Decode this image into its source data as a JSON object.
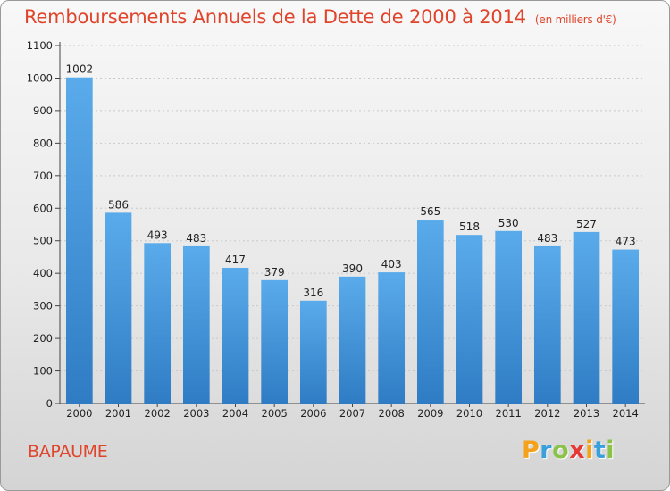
{
  "chart_data": {
    "type": "bar",
    "title": "Remboursements Annuels de la Dette de 2000 à 2014",
    "subtitle": "(en milliers d'€)",
    "categories": [
      "2000",
      "2001",
      "2002",
      "2003",
      "2004",
      "2005",
      "2006",
      "2007",
      "2008",
      "2009",
      "2010",
      "2011",
      "2012",
      "2013",
      "2014"
    ],
    "values": [
      1002,
      586,
      493,
      483,
      417,
      379,
      316,
      390,
      403,
      565,
      518,
      530,
      483,
      527,
      473
    ],
    "ylim": [
      0,
      1100
    ],
    "yticks": [
      0,
      100,
      200,
      300,
      400,
      500,
      600,
      700,
      800,
      900,
      1000,
      1100
    ],
    "grid": true,
    "bar_color": "#3a8ad2",
    "bar_color_light": "#5aabeb"
  },
  "footer": {
    "commune": "BAPAUME",
    "brand": [
      "P",
      "r",
      "o",
      "x",
      "i",
      "t",
      "i"
    ],
    "brand_colors": [
      "#f4a21c",
      "#3aa0dc",
      "#8bc34a",
      "#e53935",
      "#f4a21c",
      "#3aa0dc",
      "#8bc34a"
    ]
  }
}
